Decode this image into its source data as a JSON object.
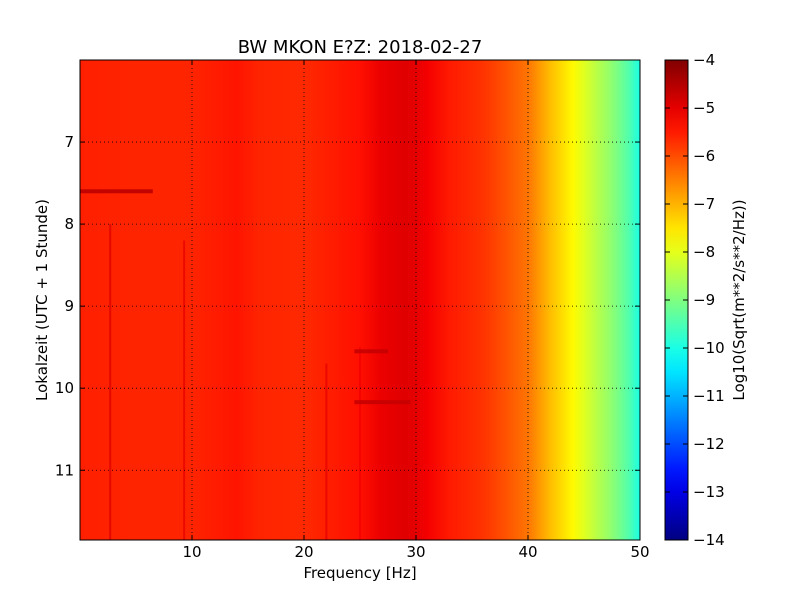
{
  "chart_data": {
    "type": "heatmap",
    "title": "BW MKON E?Z: 2018-02-27",
    "xlabel": "Frequency [Hz]",
    "ylabel": "Lokalzeit (UTC + 1 Stunde)",
    "xlim": [
      0,
      50
    ],
    "ylim": [
      6.0,
      11.85
    ],
    "y_inverted": true,
    "x_ticks": [
      10,
      20,
      30,
      40,
      50
    ],
    "y_ticks": [
      7,
      8,
      9,
      10,
      11
    ],
    "grid": true,
    "colormap": "jet",
    "colorbar": {
      "label": "Log10(Sqrt(m**2/s**2/Hz))",
      "range": [
        -14,
        -4
      ],
      "ticks": [
        -4,
        -5,
        -6,
        -7,
        -8,
        -9,
        -10,
        -11,
        -12,
        -13,
        -14
      ]
    },
    "spectrum_profile": {
      "frequency_hz": [
        0,
        5,
        10,
        14,
        16,
        20,
        25,
        27,
        29,
        30,
        31,
        33,
        36,
        38,
        40,
        41,
        42,
        43,
        44,
        45,
        46,
        47,
        48,
        49,
        50
      ],
      "log10_amplitude": [
        -5.55,
        -5.6,
        -5.6,
        -5.45,
        -5.6,
        -5.65,
        -5.4,
        -5.05,
        -4.95,
        -5.0,
        -5.15,
        -5.5,
        -5.75,
        -6.05,
        -6.4,
        -6.75,
        -7.1,
        -7.4,
        -7.7,
        -8.05,
        -8.4,
        -8.7,
        -9.05,
        -9.45,
        -10.0
      ]
    },
    "features": [
      {
        "type": "horizontal-band",
        "time": 7.6,
        "frequency_range": [
          0,
          6.5
        ],
        "log10_amplitude": -4.6
      },
      {
        "type": "vertical-line",
        "frequency": 2.7,
        "time_range": [
          8.0,
          11.85
        ],
        "log10_amplitude": -4.9
      },
      {
        "type": "vertical-line",
        "frequency": 9.3,
        "time_range": [
          8.2,
          11.85
        ],
        "log10_amplitude": -5.0
      },
      {
        "type": "vertical-line",
        "frequency": 22.0,
        "time_range": [
          9.7,
          11.85
        ],
        "log10_amplitude": -5.0
      },
      {
        "type": "vertical-line",
        "frequency": 25.0,
        "time_range": [
          9.5,
          11.85
        ],
        "log10_amplitude": -5.1
      },
      {
        "type": "horizontal-band",
        "time": 9.55,
        "frequency_range": [
          24.5,
          27.5
        ],
        "log10_amplitude": -4.7
      },
      {
        "type": "horizontal-band",
        "time": 10.17,
        "frequency_range": [
          24.5,
          29.5
        ],
        "log10_amplitude": -4.7
      }
    ]
  }
}
